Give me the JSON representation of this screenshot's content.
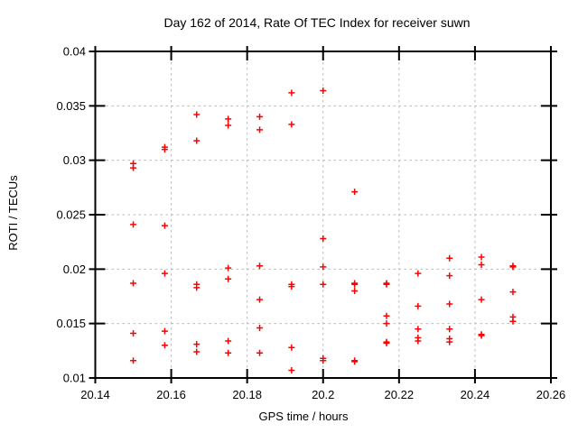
{
  "window": {
    "background": "#ffffff"
  },
  "chart_data": {
    "type": "scatter",
    "title": "Day 162 of 2014, Rate Of TEC Index for receiver suwn",
    "xlabel": "GPS time / hours",
    "ylabel": "ROTI / TECUs",
    "xlim": [
      20.14,
      20.26
    ],
    "ylim": [
      0.01,
      0.04
    ],
    "x_ticks": [
      20.14,
      20.16,
      20.18,
      20.2,
      20.22,
      20.24,
      20.26
    ],
    "x_tick_labels": [
      "20.14",
      "20.16",
      "20.18",
      "20.2",
      "20.22",
      "20.24",
      "20.26"
    ],
    "y_ticks": [
      0.01,
      0.015,
      0.02,
      0.025,
      0.03,
      0.035,
      0.04
    ],
    "y_tick_labels": [
      "0.01",
      "0.015",
      "0.02",
      "0.025",
      "0.03",
      "0.035",
      "0.04"
    ],
    "grid": "dashed",
    "grid_color": "#b9b9b9",
    "border_color": "#000000",
    "legend": "none",
    "marker": {
      "shape": "plus",
      "color": "#ff0000",
      "size": 7
    },
    "series": [
      {
        "name": "ROTI",
        "points": [
          [
            20.15,
            0.0297
          ],
          [
            20.15,
            0.0293
          ],
          [
            20.15,
            0.0241
          ],
          [
            20.15,
            0.0187
          ],
          [
            20.15,
            0.0141
          ],
          [
            20.15,
            0.0116
          ],
          [
            20.1583,
            0.0312
          ],
          [
            20.1583,
            0.031
          ],
          [
            20.1583,
            0.024
          ],
          [
            20.1583,
            0.0196
          ],
          [
            20.1583,
            0.0143
          ],
          [
            20.1583,
            0.013
          ],
          [
            20.1667,
            0.0342
          ],
          [
            20.1667,
            0.0318
          ],
          [
            20.1667,
            0.0186
          ],
          [
            20.1667,
            0.0183
          ],
          [
            20.1667,
            0.0131
          ],
          [
            20.1667,
            0.0124
          ],
          [
            20.175,
            0.0338
          ],
          [
            20.175,
            0.0332
          ],
          [
            20.175,
            0.0201
          ],
          [
            20.175,
            0.0191
          ],
          [
            20.175,
            0.0134
          ],
          [
            20.175,
            0.0123
          ],
          [
            20.1833,
            0.034
          ],
          [
            20.1833,
            0.0328
          ],
          [
            20.1833,
            0.0203
          ],
          [
            20.1833,
            0.0172
          ],
          [
            20.1833,
            0.0146
          ],
          [
            20.1833,
            0.0123
          ],
          [
            20.1917,
            0.0362
          ],
          [
            20.1917,
            0.0333
          ],
          [
            20.1917,
            0.0186
          ],
          [
            20.1917,
            0.0184
          ],
          [
            20.1917,
            0.0128
          ],
          [
            20.1917,
            0.0107
          ],
          [
            20.2,
            0.0364
          ],
          [
            20.2,
            0.0228
          ],
          [
            20.2,
            0.0202
          ],
          [
            20.2,
            0.0186
          ],
          [
            20.2,
            0.0118
          ],
          [
            20.2,
            0.0116
          ],
          [
            20.2083,
            0.0271
          ],
          [
            20.2083,
            0.0187
          ],
          [
            20.2083,
            0.0186
          ],
          [
            20.2083,
            0.018
          ],
          [
            20.2083,
            0.0116
          ],
          [
            20.2083,
            0.0115
          ],
          [
            20.2167,
            0.0187
          ],
          [
            20.2167,
            0.0186
          ],
          [
            20.2167,
            0.0157
          ],
          [
            20.2167,
            0.015
          ],
          [
            20.2167,
            0.0133
          ],
          [
            20.2167,
            0.0132
          ],
          [
            20.225,
            0.0196
          ],
          [
            20.225,
            0.0166
          ],
          [
            20.225,
            0.0145
          ],
          [
            20.225,
            0.0137
          ],
          [
            20.225,
            0.0134
          ],
          [
            20.2333,
            0.021
          ],
          [
            20.2333,
            0.0194
          ],
          [
            20.2333,
            0.0168
          ],
          [
            20.2333,
            0.0145
          ],
          [
            20.2333,
            0.0136
          ],
          [
            20.2333,
            0.0133
          ],
          [
            20.2417,
            0.0211
          ],
          [
            20.2417,
            0.0204
          ],
          [
            20.2417,
            0.0172
          ],
          [
            20.2417,
            0.014
          ],
          [
            20.2417,
            0.0139
          ],
          [
            20.25,
            0.0203
          ],
          [
            20.25,
            0.0202
          ],
          [
            20.25,
            0.0179
          ],
          [
            20.25,
            0.0156
          ],
          [
            20.25,
            0.0152
          ]
        ]
      }
    ]
  }
}
